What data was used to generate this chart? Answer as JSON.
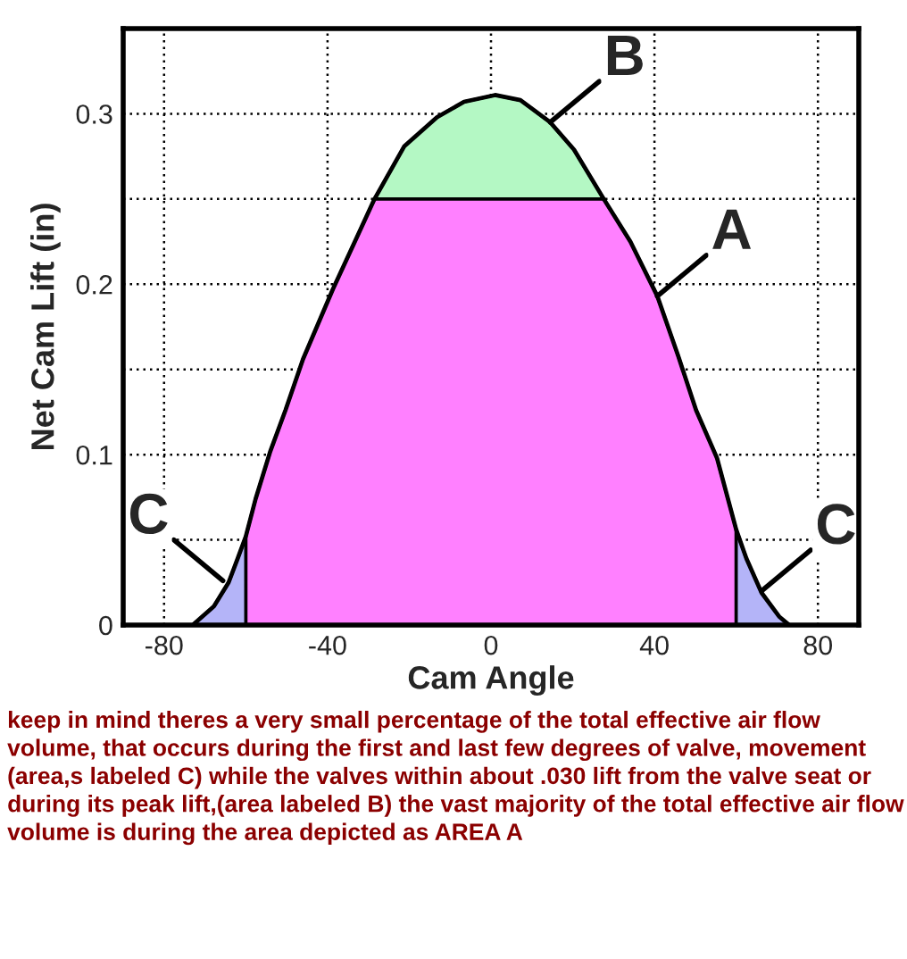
{
  "chart_data": {
    "type": "area",
    "xlabel": "Cam Angle",
    "ylabel": "Net Cam Lift (in)",
    "xlim": [
      -90,
      90
    ],
    "xticks": [
      -80,
      -40,
      0,
      40,
      80
    ],
    "ylim": [
      0,
      0.35
    ],
    "yticks": [
      0,
      {
        "value": 0.05,
        "label": null
      },
      0.1,
      {
        "value": 0.15,
        "label": null
      },
      0.2,
      {
        "value": 0.25,
        "label": null
      },
      0.3
    ],
    "grid": true,
    "line_style": "solid",
    "series": [
      {
        "color": "#b4f8c4",
        "x": [
          -28.5,
          -21.2,
          -13.2,
          -6.6,
          1,
          7.2,
          14.5,
          20.3,
          27.6
        ],
        "values": [
          0.25,
          0.281,
          0.298,
          0.307,
          0.311,
          0.308,
          0.295,
          0.279,
          0.25
        ]
      },
      {
        "color": "#ff80ff",
        "x": [
          -60,
          -57.6,
          -54,
          -50.3,
          -46,
          -38.7,
          -28.5,
          27.6,
          34.1,
          40.7,
          45.8,
          50.2,
          55.3,
          60
        ],
        "values": [
          0.052,
          0.074,
          0.102,
          0.126,
          0.156,
          0.197,
          0.25,
          0.25,
          0.225,
          0.193,
          0.158,
          0.126,
          0.098,
          0.056
        ]
      },
      {
        "color": "#b4b4f8",
        "x": [
          -73,
          -67.8,
          -64.2,
          -62,
          -60
        ],
        "values": [
          0,
          0.011,
          0.025,
          0.039,
          0.052
        ]
      },
      {
        "color": "#b4b4f8",
        "x": [
          60,
          62.5,
          66.2,
          70.5,
          73
        ],
        "values": [
          0.056,
          0.039,
          0.019,
          0.005,
          0
        ]
      },
      {
        "type": "line",
        "color": "#000000",
        "x": [
          -73,
          -67.8,
          -64.2,
          -62,
          -60,
          -57.6,
          -54,
          -50.3,
          -46,
          -38.7,
          -28.5,
          -21.2,
          -13.2,
          -6.6,
          1,
          7.2,
          14.5,
          20.3,
          27.6,
          34.1,
          40.7,
          45.8,
          50.2,
          55.3,
          60,
          62.5,
          66.2,
          70.5,
          73
        ],
        "values": [
          0,
          0.011,
          0.025,
          0.039,
          0.052,
          0.074,
          0.102,
          0.126,
          0.156,
          0.197,
          0.25,
          0.281,
          0.298,
          0.307,
          0.311,
          0.308,
          0.295,
          0.279,
          0.25,
          0.225,
          0.193,
          0.158,
          0.126,
          0.098,
          0.056,
          0.039,
          0.019,
          0.005,
          0
        ]
      }
    ],
    "annotations": [
      {
        "text": "B",
        "x": 14.5,
        "y": 0.295
      },
      {
        "text": "A",
        "x": 40.7,
        "y": 0.193
      },
      {
        "text": "C",
        "x": -65.6,
        "y": 0.026
      },
      {
        "text": "C",
        "x": 66.2,
        "y": 0.02
      },
      "keep in mind theres a very small percentage of the total effective air flow volume, that occurs during the first and last few degrees of valve, movement (area,s labeled C) while the valves within about .030 lift from the valve seat or during its peak lift,(area labeled B) the vast majority of the total effective air flow volume is during the area depicted as AREA A"
    ]
  }
}
